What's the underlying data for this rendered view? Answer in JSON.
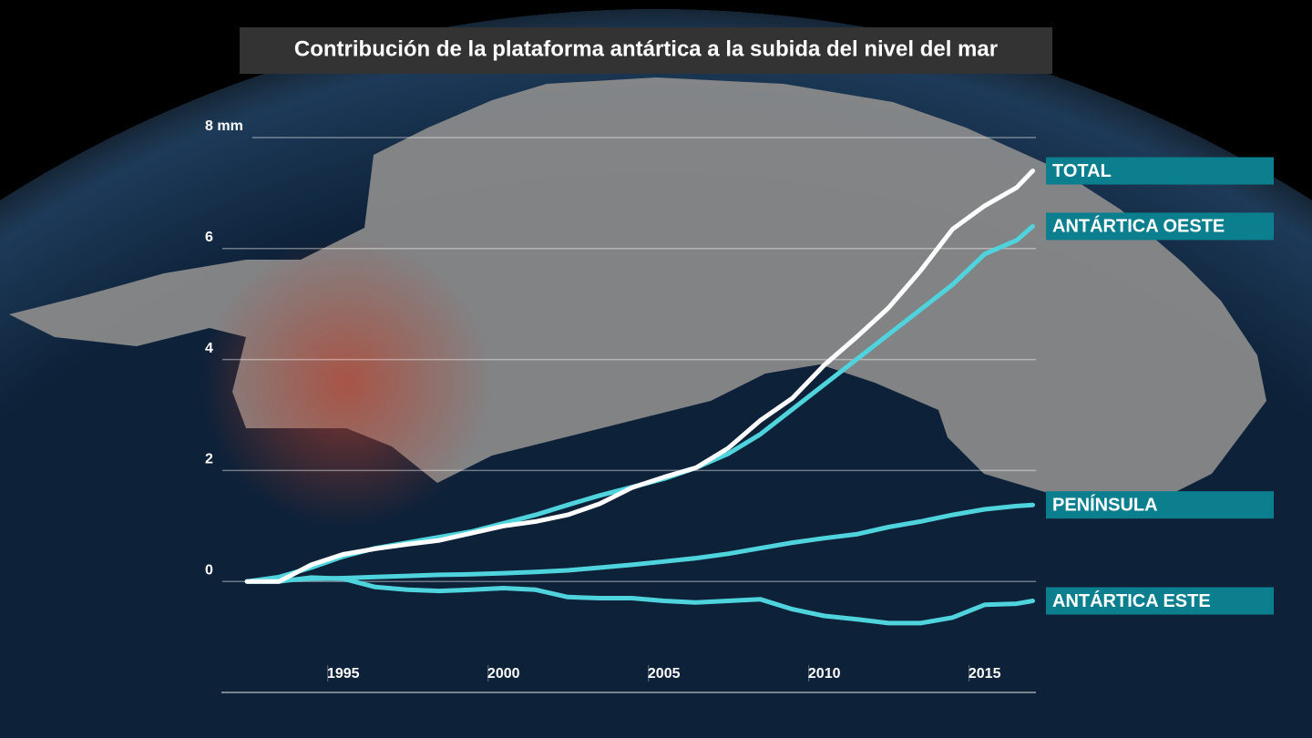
{
  "chart_data": {
    "type": "line",
    "title": "Contribución de la plataforma antártica a la subida del nivel del mar",
    "x": [
      1992,
      1993,
      1994,
      1995,
      1996,
      1997,
      1998,
      1999,
      2000,
      2001,
      2002,
      2003,
      2004,
      2005,
      2006,
      2007,
      2008,
      2009,
      2010,
      2011,
      2012,
      2013,
      2014,
      2015,
      2016,
      2016.5
    ],
    "xlim": [
      1991.2,
      2016.6
    ],
    "xticks": [
      1995,
      2000,
      2005,
      2010,
      2015
    ],
    "ylim": [
      -2,
      8
    ],
    "yticks": [
      0,
      2,
      4,
      6,
      {
        "value": 8,
        "label": "8 mm"
      }
    ],
    "grid": true,
    "series": [
      {
        "name": "TOTAL",
        "color": "#ffffff",
        "values": [
          0,
          0.0,
          0.3,
          0.49,
          0.59,
          0.67,
          0.74,
          0.87,
          1.0,
          1.08,
          1.2,
          1.4,
          1.69,
          1.88,
          2.05,
          2.4,
          2.9,
          3.3,
          3.9,
          4.4,
          4.93,
          5.6,
          6.35,
          6.77,
          7.1,
          7.4
        ]
      },
      {
        "name": "ANTÁRTICA OESTE",
        "color": "#4fd3dc",
        "values": [
          0,
          0.08,
          0.25,
          0.45,
          0.6,
          0.7,
          0.8,
          0.9,
          1.05,
          1.2,
          1.38,
          1.55,
          1.7,
          1.85,
          2.05,
          2.3,
          2.65,
          3.1,
          3.55,
          4.0,
          4.45,
          4.9,
          5.35,
          5.9,
          6.15,
          6.4
        ]
      },
      {
        "name": "PENÍNSULA",
        "color": "#4fd3dc",
        "values": [
          0,
          0.02,
          0.05,
          0.06,
          0.08,
          0.1,
          0.12,
          0.13,
          0.15,
          0.17,
          0.2,
          0.25,
          0.3,
          0.36,
          0.42,
          0.5,
          0.6,
          0.7,
          0.78,
          0.85,
          0.98,
          1.08,
          1.2,
          1.3,
          1.36,
          1.38
        ]
      },
      {
        "name": "ANTÁRTICA ESTE",
        "color": "#4fd3dc",
        "values": [
          0,
          0.0,
          0.07,
          0.05,
          -0.1,
          -0.15,
          -0.17,
          -0.15,
          -0.12,
          -0.15,
          -0.28,
          -0.3,
          -0.3,
          -0.35,
          -0.38,
          -0.35,
          -0.32,
          -0.5,
          -0.62,
          -0.68,
          -0.75,
          -0.75,
          -0.65,
          -0.42,
          -0.4,
          -0.35
        ]
      }
    ]
  }
}
